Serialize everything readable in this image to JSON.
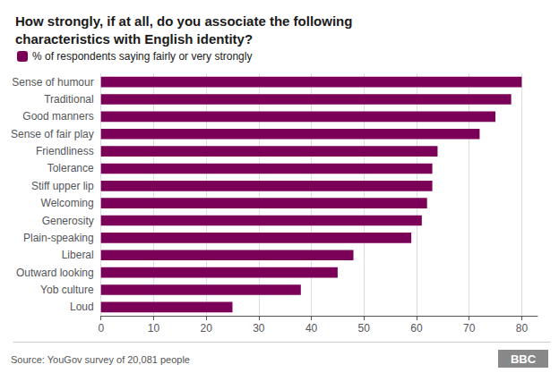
{
  "chart_data": {
    "type": "bar",
    "orientation": "horizontal",
    "title": "How strongly, if at all, do you associate the following\ncharacteristics with English identity?",
    "categories": [
      "Sense of humour",
      "Traditional",
      "Good manners",
      "Sense of fair play",
      "Friendliness",
      "Tolerance",
      "Stiff upper lip",
      "Welcoming",
      "Generosity",
      "Plain-speaking",
      "Liberal",
      "Outward looking",
      "Yob culture",
      "Loud"
    ],
    "series": [
      {
        "name": "% of respondents saying fairly or very strongly",
        "color": "#7B0057",
        "values": [
          80,
          78,
          75,
          72,
          64,
          63,
          63,
          62,
          61,
          59,
          48,
          45,
          38,
          25
        ]
      }
    ],
    "xlim": [
      0,
      83
    ],
    "xticks": [
      0,
      10,
      20,
      30,
      40,
      50,
      60,
      70,
      80
    ],
    "grid": true,
    "legend": "top left",
    "annotations": [
      "Source: YouGov survey of 20,081 people",
      "BBC"
    ]
  }
}
